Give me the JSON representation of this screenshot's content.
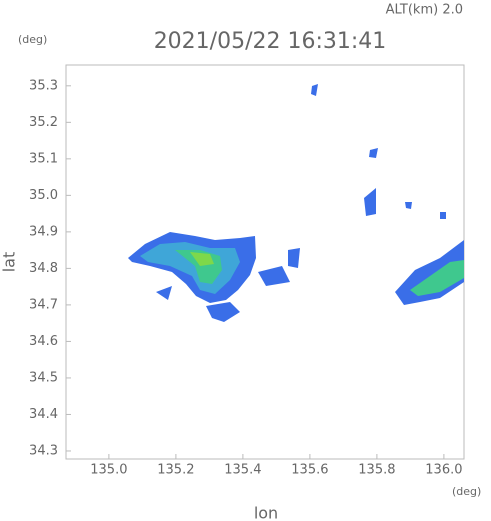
{
  "chart_data": {
    "type": "radar-map",
    "altitude_label": "ALT(km) 2.0",
    "title": "2021/05/22 16:31:41",
    "y_unit": "(deg)",
    "x_unit": "(deg)",
    "xlabel": "lon",
    "ylabel": "lat",
    "xlim": [
      134.872,
      136.06
    ],
    "ylim": [
      34.278,
      35.357
    ],
    "xticks": [
      {
        "value": 135,
        "label": "135.0"
      },
      135.2,
      135.4,
      135.6,
      135.8,
      {
        "value": 136,
        "label": "136.0"
      }
    ],
    "yticks": [
      34.3,
      34.4,
      34.5,
      34.6,
      34.7,
      34.8,
      34.9,
      {
        "value": 35,
        "label": "35.0"
      },
      35.1,
      35.2,
      35.3
    ]
  }
}
